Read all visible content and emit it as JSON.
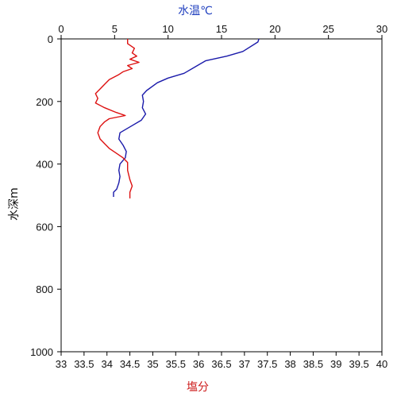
{
  "chart_data": {
    "type": "line",
    "title": "",
    "top_axis": {
      "label": "水温℃",
      "label_color": "#1f3fbf",
      "range": [
        0,
        30
      ],
      "ticks": [
        "0",
        "5",
        "10",
        "15",
        "20",
        "25",
        "30"
      ]
    },
    "bottom_axis": {
      "label": "塩分",
      "label_color": "#cc1a1a",
      "range": [
        33,
        40
      ],
      "ticks": [
        "33",
        "33.5",
        "34",
        "34.5",
        "35",
        "35.5",
        "36",
        "36.5",
        "37",
        "37.5",
        "38",
        "38.5",
        "39",
        "39.5",
        "40"
      ]
    },
    "y_axis": {
      "label": "水深m",
      "range": [
        0,
        1000
      ],
      "inverted": true,
      "ticks": [
        "0",
        "200",
        "400",
        "600",
        "800",
        "1000"
      ]
    },
    "grid": false,
    "series": [
      {
        "axis": "top",
        "color": "#1a1aaa",
        "points": [
          {
            "x": 18.5,
            "depth": 0
          },
          {
            "x": 18.4,
            "depth": 10
          },
          {
            "x": 17.0,
            "depth": 40
          },
          {
            "x": 15.5,
            "depth": 55
          },
          {
            "x": 13.5,
            "depth": 70
          },
          {
            "x": 12.5,
            "depth": 90
          },
          {
            "x": 11.5,
            "depth": 110
          },
          {
            "x": 10.0,
            "depth": 125
          },
          {
            "x": 9.0,
            "depth": 140
          },
          {
            "x": 8.0,
            "depth": 165
          },
          {
            "x": 7.6,
            "depth": 180
          },
          {
            "x": 7.7,
            "depth": 200
          },
          {
            "x": 7.6,
            "depth": 220
          },
          {
            "x": 7.9,
            "depth": 240
          },
          {
            "x": 7.5,
            "depth": 260
          },
          {
            "x": 6.5,
            "depth": 280
          },
          {
            "x": 5.5,
            "depth": 300
          },
          {
            "x": 5.4,
            "depth": 320
          },
          {
            "x": 5.8,
            "depth": 340
          },
          {
            "x": 6.1,
            "depth": 360
          },
          {
            "x": 6.0,
            "depth": 380
          },
          {
            "x": 5.5,
            "depth": 400
          },
          {
            "x": 5.4,
            "depth": 420
          },
          {
            "x": 5.5,
            "depth": 440
          },
          {
            "x": 5.4,
            "depth": 460
          },
          {
            "x": 5.2,
            "depth": 480
          },
          {
            "x": 4.9,
            "depth": 490
          },
          {
            "x": 4.9,
            "depth": 505
          }
        ]
      },
      {
        "axis": "bottom",
        "color": "#dd1111",
        "points": [
          {
            "x": 34.45,
            "depth": 0
          },
          {
            "x": 34.45,
            "depth": 15
          },
          {
            "x": 34.6,
            "depth": 30
          },
          {
            "x": 34.55,
            "depth": 45
          },
          {
            "x": 34.65,
            "depth": 55
          },
          {
            "x": 34.5,
            "depth": 65
          },
          {
            "x": 34.7,
            "depth": 75
          },
          {
            "x": 34.45,
            "depth": 85
          },
          {
            "x": 34.55,
            "depth": 95
          },
          {
            "x": 34.35,
            "depth": 105
          },
          {
            "x": 34.25,
            "depth": 115
          },
          {
            "x": 34.05,
            "depth": 130
          },
          {
            "x": 33.95,
            "depth": 145
          },
          {
            "x": 33.85,
            "depth": 160
          },
          {
            "x": 33.75,
            "depth": 175
          },
          {
            "x": 33.8,
            "depth": 190
          },
          {
            "x": 33.75,
            "depth": 205
          },
          {
            "x": 33.95,
            "depth": 220
          },
          {
            "x": 34.2,
            "depth": 235
          },
          {
            "x": 34.4,
            "depth": 245
          },
          {
            "x": 34.05,
            "depth": 255
          },
          {
            "x": 33.95,
            "depth": 265
          },
          {
            "x": 33.85,
            "depth": 280
          },
          {
            "x": 33.8,
            "depth": 300
          },
          {
            "x": 33.85,
            "depth": 320
          },
          {
            "x": 33.95,
            "depth": 335
          },
          {
            "x": 34.05,
            "depth": 350
          },
          {
            "x": 34.2,
            "depth": 365
          },
          {
            "x": 34.35,
            "depth": 380
          },
          {
            "x": 34.45,
            "depth": 395
          },
          {
            "x": 34.45,
            "depth": 420
          },
          {
            "x": 34.5,
            "depth": 450
          },
          {
            "x": 34.55,
            "depth": 470
          },
          {
            "x": 34.5,
            "depth": 490
          },
          {
            "x": 34.5,
            "depth": 510
          }
        ]
      }
    ]
  }
}
